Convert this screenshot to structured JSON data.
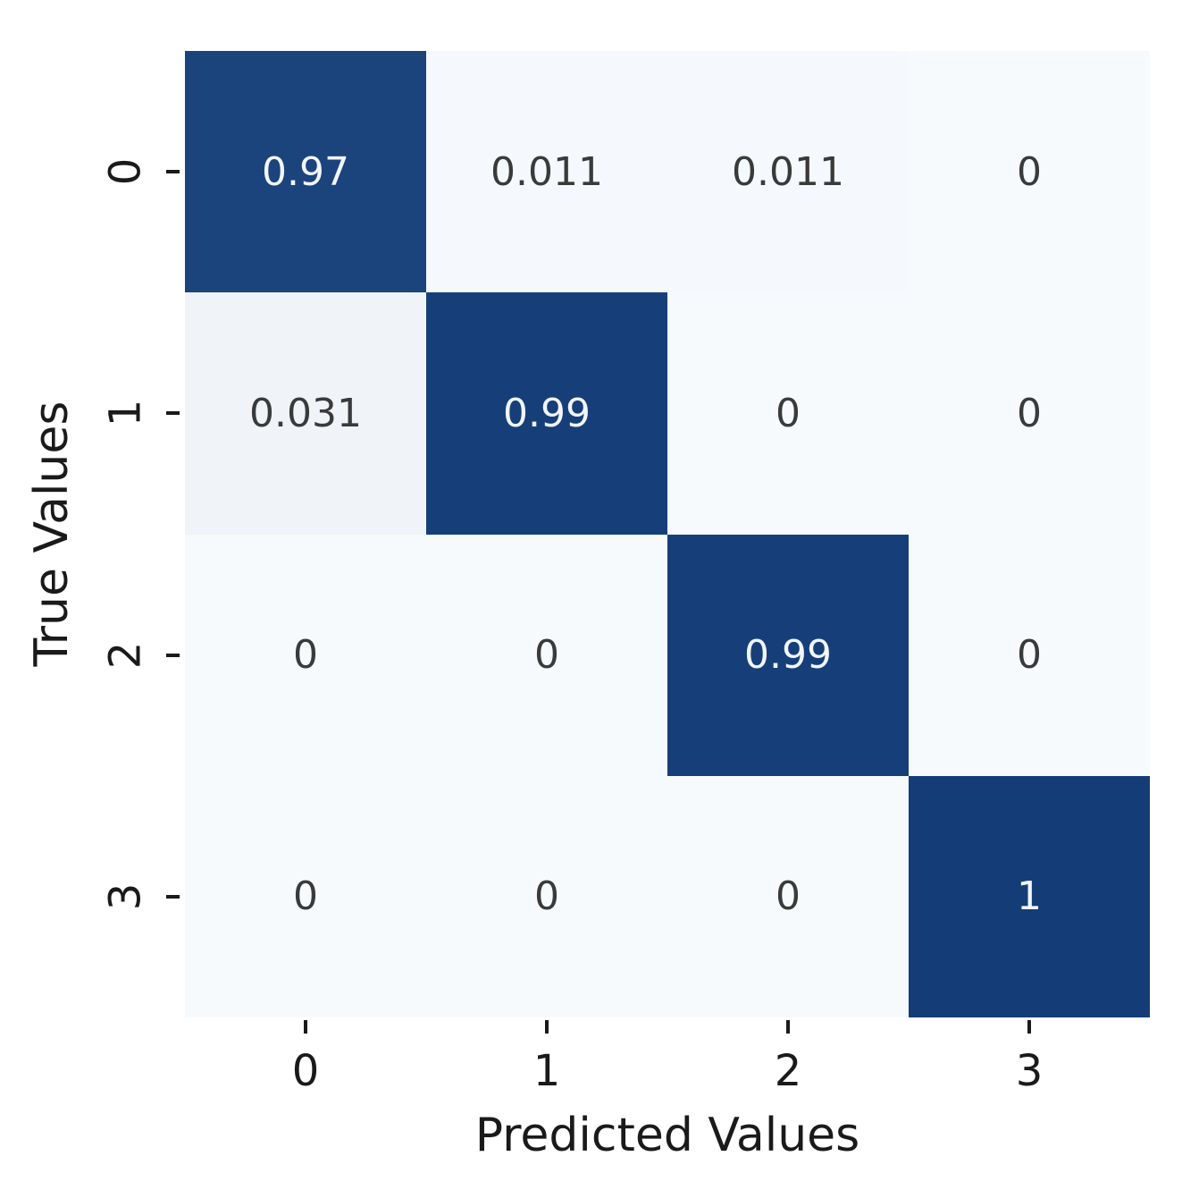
{
  "chart_data": {
    "type": "heatmap",
    "title": "",
    "xlabel": "Predicted Values",
    "ylabel": "True Values",
    "x_categories": [
      "0",
      "1",
      "2",
      "3"
    ],
    "y_categories": [
      "0",
      "1",
      "2",
      "3"
    ],
    "matrix": [
      [
        0.97,
        0.011,
        0.011,
        0
      ],
      [
        0.031,
        0.99,
        0,
        0
      ],
      [
        0,
        0,
        0.99,
        0
      ],
      [
        0,
        0,
        0,
        1
      ]
    ],
    "cell_labels": [
      [
        "0.97",
        "0.011",
        "0.011",
        "0"
      ],
      [
        "0.031",
        "0.99",
        "0",
        "0"
      ],
      [
        "0",
        "0",
        "0.99",
        "0"
      ],
      [
        "0",
        "0",
        "0",
        "1"
      ]
    ],
    "colormap": "Blues",
    "vmin": 0,
    "vmax": 1,
    "legend_position": "none",
    "grid": false,
    "colors": {
      "background": "#ffffff",
      "cmap_low": "#f7fafd",
      "cmap_high": "#143d78",
      "annotation_on_dark": "#f2f5fa",
      "annotation_on_light": "#3a3a3a",
      "axis_text": "#1a1a1a",
      "tick_mark": "#1a1a1a"
    }
  }
}
